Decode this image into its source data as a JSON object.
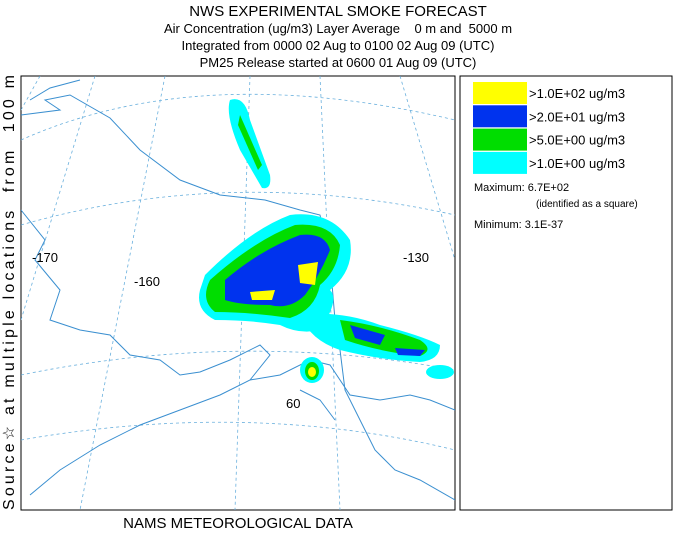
{
  "title": "NWS EXPERIMENTAL SMOKE FORECAST",
  "subtitles": [
    "Air Concentration (ug/m3) Layer Average    0 m and  5000 m",
    "Integrated from 0000 02 Aug to 0100 02 Aug 09 (UTC)",
    "PM25 Release started at 0600 01 Aug 09 (UTC)"
  ],
  "side_label": "Source☆ at multiple locations  from  100 m",
  "footer": "NAMS METEOROLOGICAL DATA",
  "legend": [
    {
      "label": ">1.0E+02 ug/m3",
      "color": "#ffff00"
    },
    {
      "label": ">2.0E+01 ug/m3",
      "color": "#0033ee"
    },
    {
      "label": ">5.0E+00 ug/m3",
      "color": "#00dd00"
    },
    {
      "label": ">1.0E+00 ug/m3",
      "color": "#00ffff"
    }
  ],
  "maximum": "Maximum: 6.7E+02",
  "maximum_note": "(identified as a square)",
  "minimum": "Minimum: 3.1E-37",
  "map_labels": [
    "-170",
    "-160",
    "-130",
    "60"
  ]
}
